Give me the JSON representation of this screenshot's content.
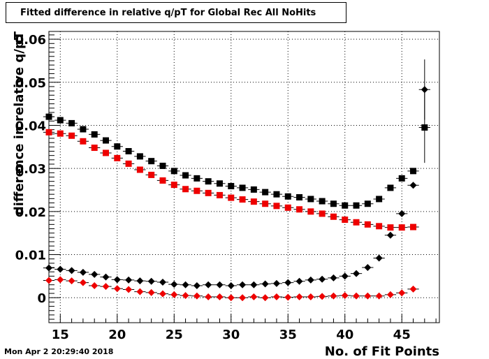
{
  "header": {
    "title": "Fitted difference in relative q/pT  for Global Rec All NoHits"
  },
  "footer": {
    "timestamp": "Mon Apr  2 20:29:40 2018"
  },
  "chart_data": {
    "type": "scatter",
    "title": "Fitted difference in relative q/pT  for Global Rec All NoHits",
    "xlabel": "No. of Fit Points",
    "ylabel": "difference in relative q/pT",
    "xlim": [
      14,
      48.3
    ],
    "ylim": [
      -0.0058,
      0.0618
    ],
    "xticks": [
      15,
      20,
      25,
      30,
      35,
      40,
      45
    ],
    "yticks": [
      0,
      0.01,
      0.02,
      0.03,
      0.04,
      0.05,
      0.06
    ],
    "ytick_labels": [
      "0",
      "0.01",
      "0.02",
      "0.03",
      "0.04",
      "0.05",
      "0.06"
    ],
    "grid": true,
    "series": [
      {
        "marker": "square",
        "color": "#000000",
        "x": [
          14,
          15,
          16,
          17,
          18,
          19,
          20,
          21,
          22,
          23,
          24,
          25,
          26,
          27,
          28,
          29,
          30,
          31,
          32,
          33,
          34,
          35,
          36,
          37,
          38,
          39,
          40,
          41,
          42,
          43,
          44,
          45,
          46,
          47
        ],
        "y": [
          0.042,
          0.0412,
          0.0405,
          0.0391,
          0.0379,
          0.0365,
          0.0351,
          0.034,
          0.0328,
          0.0317,
          0.0306,
          0.0294,
          0.0284,
          0.0277,
          0.027,
          0.0265,
          0.0259,
          0.0255,
          0.0251,
          0.0245,
          0.024,
          0.0235,
          0.0233,
          0.0229,
          0.0224,
          0.0218,
          0.0214,
          0.0214,
          0.0218,
          0.0229,
          0.0255,
          0.0277,
          0.0294,
          0.0395
        ],
        "yerr": [
          0,
          0,
          0,
          0,
          0,
          0,
          0,
          0,
          0,
          0,
          0,
          0,
          0,
          0,
          0,
          0,
          0,
          0,
          0,
          0,
          0,
          0,
          0,
          0,
          0,
          0,
          0,
          0,
          0,
          0,
          0,
          0,
          0,
          0.0082
        ]
      },
      {
        "marker": "square",
        "color": "#ee0000",
        "x": [
          14,
          15,
          16,
          17,
          18,
          19,
          20,
          21,
          22,
          23,
          24,
          25,
          26,
          27,
          28,
          29,
          30,
          31,
          32,
          33,
          34,
          35,
          36,
          37,
          38,
          39,
          40,
          41,
          42,
          43,
          44,
          45,
          46
        ],
        "y": [
          0.0384,
          0.0381,
          0.0376,
          0.0363,
          0.0348,
          0.0336,
          0.0324,
          0.0311,
          0.0297,
          0.0285,
          0.0272,
          0.0262,
          0.0252,
          0.0248,
          0.0243,
          0.0238,
          0.0232,
          0.0228,
          0.0223,
          0.0218,
          0.0213,
          0.0209,
          0.0205,
          0.02,
          0.0195,
          0.0188,
          0.0181,
          0.0175,
          0.017,
          0.0166,
          0.0163,
          0.0163,
          0.0164
        ],
        "yerr": []
      },
      {
        "marker": "diamond",
        "color": "#000000",
        "x": [
          14,
          15,
          16,
          17,
          18,
          19,
          20,
          21,
          22,
          23,
          24,
          25,
          26,
          27,
          28,
          29,
          30,
          31,
          32,
          33,
          34,
          35,
          36,
          37,
          38,
          39,
          40,
          41,
          42,
          43,
          44,
          45,
          46,
          47
        ],
        "y": [
          0.0069,
          0.0066,
          0.0063,
          0.0059,
          0.0054,
          0.0048,
          0.0042,
          0.0041,
          0.0039,
          0.0038,
          0.0036,
          0.0031,
          0.003,
          0.0028,
          0.003,
          0.003,
          0.0028,
          0.003,
          0.003,
          0.0032,
          0.0033,
          0.0035,
          0.0038,
          0.0041,
          0.0043,
          0.0046,
          0.005,
          0.0056,
          0.007,
          0.0092,
          0.0145,
          0.0195,
          0.0261,
          0.0483
        ],
        "yerr": [
          0,
          0,
          0,
          0,
          0,
          0,
          0,
          0,
          0,
          0,
          0,
          0,
          0,
          0,
          0,
          0,
          0,
          0,
          0,
          0,
          0,
          0,
          0,
          0,
          0,
          0,
          0,
          0,
          0,
          0,
          0,
          0,
          0,
          0.007
        ]
      },
      {
        "marker": "diamond",
        "color": "#ee0000",
        "x": [
          14,
          15,
          16,
          17,
          18,
          19,
          20,
          21,
          22,
          23,
          24,
          25,
          26,
          27,
          28,
          29,
          30,
          31,
          32,
          33,
          34,
          35,
          36,
          37,
          38,
          39,
          40,
          41,
          42,
          43,
          44,
          45,
          46
        ],
        "y": [
          0.004,
          0.0042,
          0.0039,
          0.0035,
          0.0028,
          0.0026,
          0.0021,
          0.0019,
          0.0014,
          0.0012,
          0.0009,
          0.0007,
          0.0005,
          0.0004,
          0.0002,
          0.0002,
          0.0,
          0.0,
          0.0002,
          0.0,
          0.0002,
          0.0001,
          0.0002,
          0.0002,
          0.0003,
          0.0004,
          0.0005,
          0.0004,
          0.0004,
          0.0004,
          0.0007,
          0.0011,
          0.002
        ],
        "yerr": []
      }
    ]
  }
}
